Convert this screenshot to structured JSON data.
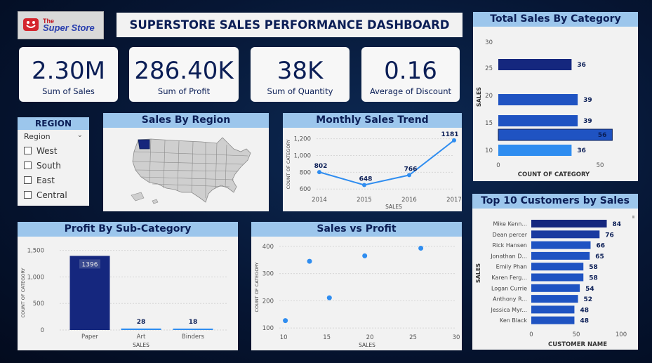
{
  "logo": {
    "line1": "The",
    "line2": "Super Store"
  },
  "dashboard_title": "SUPERSTORE SALES PERFORMANCE DASHBOARD",
  "kpis": [
    {
      "value": "2.30M",
      "label": "Sum of Sales"
    },
    {
      "value": "286.40K",
      "label": "Sum of Profit"
    },
    {
      "value": "38K",
      "label": "Sum of Quantity"
    },
    {
      "value": "0.16",
      "label": "Average of Discount"
    }
  ],
  "region_slicer": {
    "title": "REGION",
    "field": "Region",
    "options": [
      "West",
      "South",
      "East",
      "Central"
    ]
  },
  "sales_by_region": {
    "title": "Sales By Region"
  },
  "colors": {
    "dark_navy": "#0b1e56",
    "bar_dark": "#15277e",
    "bar_mid": "#1f53c2",
    "bar_light": "#2f8df0",
    "panel_head": "#9cc6ec"
  },
  "chart_data": [
    {
      "id": "monthly",
      "type": "line",
      "title": "Monthly Sales Trend",
      "xlabel": "SALES",
      "ylabel": "COUNT OF CATEGORY",
      "x": [
        "2014",
        "2015",
        "2016",
        "2017"
      ],
      "values": [
        802,
        648,
        766,
        1181
      ],
      "labels": [
        "802",
        "648",
        "766",
        "1181"
      ],
      "yticks": [
        "600",
        "800",
        "1,000",
        "1,200"
      ],
      "ylim": [
        560,
        1230
      ]
    },
    {
      "id": "category",
      "type": "bar",
      "title": "Total Sales By Category",
      "xlabel": "COUNT OF CATEGORY",
      "ylabel": "SALES",
      "categories": [
        "25",
        "20",
        "15",
        "",
        "10"
      ],
      "values": [
        36,
        39,
        39,
        56,
        36
      ],
      "labels": [
        "36",
        "39",
        "39",
        "56",
        "36"
      ],
      "yticks": [
        "30",
        "25",
        "20",
        "15",
        "10"
      ],
      "xticks": [
        "0",
        "50"
      ],
      "xlim": [
        0,
        60
      ]
    },
    {
      "id": "subcat",
      "type": "bar",
      "title": "Profit By Sub-Category",
      "xlabel": "SALES",
      "ylabel": "COUNT OF CATEGORY",
      "categories": [
        "Paper",
        "Art",
        "Binders"
      ],
      "values": [
        1396,
        28,
        18
      ],
      "labels": [
        "1396",
        "28",
        "18"
      ],
      "yticks": [
        "0",
        "500",
        "1,000",
        "1,500"
      ],
      "ylim": [
        0,
        1600
      ]
    },
    {
      "id": "scatter",
      "type": "scatter",
      "title": "Sales vs Profit",
      "xlabel": "SALES",
      "ylabel": "COUNT OF CATEGORY",
      "points": [
        [
          10.2,
          127
        ],
        [
          13,
          345
        ],
        [
          15.3,
          211
        ],
        [
          19.4,
          365
        ],
        [
          25.9,
          393
        ]
      ],
      "xticks": [
        "10",
        "15",
        "20",
        "25",
        "30"
      ],
      "yticks": [
        "100",
        "200",
        "300",
        "400"
      ],
      "xlim": [
        9.5,
        30
      ],
      "ylim": [
        90,
        415
      ]
    },
    {
      "id": "customers",
      "type": "bar",
      "title": "Top 10 Customers by Sales",
      "xlabel": "CUSTOMER NAME",
      "ylabel": "SALES",
      "categories": [
        "Mike Kenn...",
        "Dean percer",
        "Rick Hansen",
        "Jonathan D...",
        "Emily Phan",
        "Karen Ferg...",
        "Logan Currie",
        "Anthony R...",
        "Jessica Myr...",
        "Ken Black"
      ],
      "values": [
        84,
        76,
        66,
        65,
        58,
        58,
        54,
        52,
        48,
        48
      ],
      "labels": [
        "84",
        "76",
        "66",
        "65",
        "58",
        "58",
        "54",
        "52",
        "48",
        "48"
      ],
      "xticks": [
        "0",
        "50",
        "100"
      ],
      "xlim": [
        0,
        100
      ]
    }
  ]
}
